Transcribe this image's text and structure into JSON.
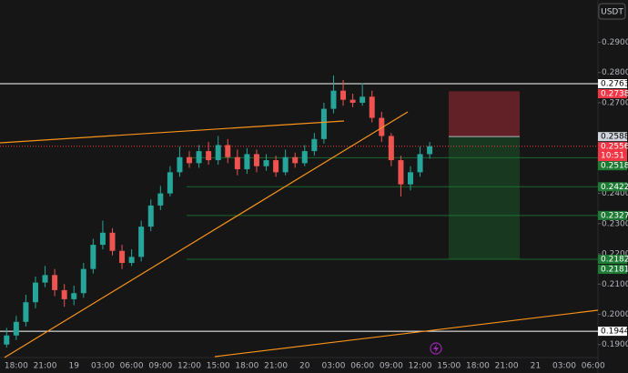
{
  "chart_data": {
    "type": "candlestick",
    "currency": "USDT",
    "countdown": "10:51",
    "up_color": "#26a69a",
    "down_color": "#ef5350",
    "categories": [
      null,
      "18:00",
      null,
      null,
      "21:00",
      null,
      null,
      "19",
      null,
      null,
      "03:00",
      null,
      null,
      "06:00",
      null,
      null,
      "09:00",
      null,
      null,
      "12:00",
      null,
      null,
      "15:00",
      null,
      null,
      "18:00",
      null,
      null,
      "21:00",
      null,
      null,
      "20",
      null,
      null,
      "03:00",
      null,
      null,
      "06:00",
      null,
      null,
      "09:00",
      null,
      null,
      "12:00",
      null,
      null,
      "15:00",
      null,
      null,
      "18:00",
      null,
      null,
      "21:00",
      null,
      null,
      "21",
      null,
      null,
      "03:00",
      null,
      null,
      "06:00"
    ],
    "open": [
      0.19,
      0.193,
      0.1975,
      0.204,
      0.2105,
      0.213,
      0.208,
      0.205,
      0.207,
      0.215,
      0.223,
      0.227,
      0.221,
      0.217,
      0.219,
      0.229,
      0.236,
      0.24,
      0.247,
      0.252,
      0.25,
      0.254,
      0.251,
      0.256,
      0.252,
      0.248,
      0.253,
      0.249,
      0.251,
      0.247,
      0.252,
      0.25,
      0.254,
      0.258,
      0.268,
      0.274,
      0.271,
      0.27,
      0.272,
      0.265,
      0.259,
      0.251,
      0.243,
      0.247,
      0.253,
      null,
      null,
      null,
      null,
      null,
      null,
      null,
      null,
      null,
      null,
      null,
      null,
      null,
      null,
      null,
      null,
      null
    ],
    "high": [
      0.1955,
      0.1995,
      0.2065,
      0.2125,
      0.216,
      0.215,
      0.21,
      0.2095,
      0.217,
      0.225,
      0.231,
      0.2285,
      0.223,
      0.2215,
      0.231,
      0.238,
      0.2425,
      0.249,
      0.2555,
      0.254,
      0.256,
      0.257,
      0.259,
      0.258,
      0.2545,
      0.255,
      0.2545,
      0.253,
      0.2525,
      0.2545,
      0.2535,
      0.256,
      0.26,
      0.27,
      0.279,
      0.2775,
      0.273,
      0.2765,
      0.274,
      0.267,
      0.26,
      0.2525,
      0.249,
      0.2555,
      0.257,
      null,
      null,
      null,
      null,
      null,
      null,
      null,
      null,
      null,
      null,
      null,
      null,
      null,
      null,
      null,
      null,
      null
    ],
    "low": [
      0.189,
      0.1915,
      0.196,
      0.202,
      0.209,
      0.206,
      0.2025,
      0.203,
      0.2055,
      0.2135,
      0.2215,
      0.2195,
      0.215,
      0.216,
      0.2175,
      0.2275,
      0.2345,
      0.239,
      0.2455,
      0.2485,
      0.2485,
      0.2495,
      0.2495,
      0.25,
      0.246,
      0.2465,
      0.247,
      0.2475,
      0.2455,
      0.246,
      0.2485,
      0.249,
      0.2525,
      0.2565,
      0.2665,
      0.269,
      0.2685,
      0.269,
      0.2635,
      0.257,
      0.249,
      0.239,
      0.241,
      0.2455,
      0.2515,
      null,
      null,
      null,
      null,
      null,
      null,
      null,
      null,
      null,
      null,
      null,
      null,
      null,
      null,
      null,
      null,
      null
    ],
    "close": [
      0.193,
      0.1975,
      0.204,
      0.2105,
      0.213,
      0.208,
      0.205,
      0.207,
      0.215,
      0.223,
      0.227,
      0.221,
      0.217,
      0.219,
      0.229,
      0.236,
      0.24,
      0.247,
      0.252,
      0.25,
      0.254,
      0.251,
      0.256,
      0.252,
      0.248,
      0.253,
      0.249,
      0.251,
      0.247,
      0.252,
      0.25,
      0.254,
      0.258,
      0.268,
      0.274,
      0.271,
      0.27,
      0.272,
      0.265,
      0.259,
      0.251,
      0.243,
      0.247,
      0.253,
      0.2556,
      null,
      null,
      null,
      null,
      null,
      null,
      null,
      null,
      null,
      null,
      null,
      null,
      null,
      null,
      null,
      null,
      null
    ],
    "ylim": [
      0.186,
      0.304
    ],
    "yticks": [
      {
        "value": 0.29,
        "label": "0.2900"
      },
      {
        "value": 0.28,
        "label": "0.2800"
      },
      {
        "value": 0.27,
        "label": "0.2700"
      },
      {
        "value": 0.24,
        "label": "0.2400"
      },
      {
        "value": 0.23,
        "label": "0.2300"
      },
      {
        "value": 0.22,
        "label": "0.2200"
      },
      {
        "value": 0.21,
        "label": "0.2100"
      },
      {
        "value": 0.2,
        "label": "0.2000"
      },
      {
        "value": 0.19,
        "label": "0.1900"
      }
    ],
    "price_tags": [
      {
        "value": 0.2763,
        "bg": "#ffffff",
        "fg": "#000000",
        "line": "full"
      },
      {
        "value": 0.2738,
        "bg": "#f23645",
        "fg": "#ffffff",
        "line": "none"
      },
      {
        "value": 0.2588,
        "bg": "#d1d4dc",
        "fg": "#000000",
        "line": "none"
      },
      {
        "value": 0.2556,
        "bg": "#f23645",
        "fg": "#ffffff",
        "line": "dotted"
      },
      {
        "value": 0.2518,
        "bg": "#1e7b34",
        "fg": "#ffffff",
        "line": "partial"
      },
      {
        "value": 0.2422,
        "bg": "#1e7b34",
        "fg": "#ffffff",
        "line": "partial"
      },
      {
        "value": 0.2327,
        "bg": "#1e7b34",
        "fg": "#ffffff",
        "line": "partial"
      },
      {
        "value": 0.2182,
        "bg": "#1e7b34",
        "fg": "#ffffff",
        "line": "partial"
      },
      {
        "value": 0.2181,
        "bg": "#1e7b34",
        "fg": "#ffffff",
        "line": "none"
      },
      {
        "value": 0.1944,
        "bg": "#ffffff",
        "fg": "#000000",
        "line": "full"
      }
    ],
    "position": {
      "entry_tag": 2,
      "stop_tag": 1,
      "target_tag": 7
    }
  }
}
